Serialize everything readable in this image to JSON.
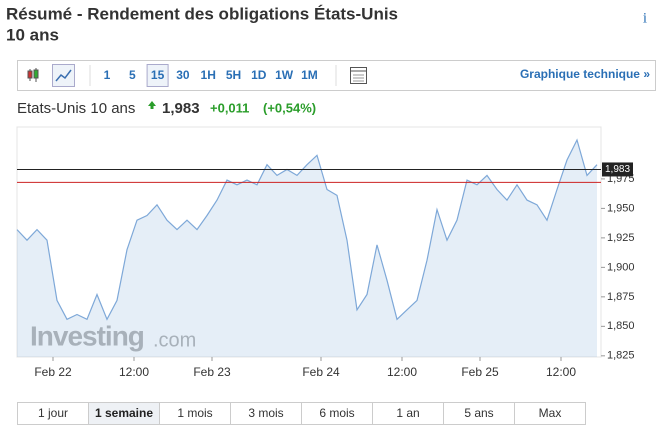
{
  "header": {
    "title_line1": "Résumé - Rendement des obligations États-Unis",
    "title_line2": "10 ans",
    "info": "i"
  },
  "toolbar": {
    "intervals": [
      "1",
      "5",
      "15",
      "30",
      "1H",
      "5H",
      "1D",
      "1W",
      "1M"
    ],
    "active": "15",
    "link": "Graphique technique »"
  },
  "quote": {
    "name": "Etats-Unis 10 ans",
    "price": "1,983",
    "change": "+0,011",
    "change_pct": "(+0,54%)"
  },
  "chart_data": {
    "type": "line",
    "series": [
      {
        "color": "#7ea8d8",
        "x": [
          0,
          1,
          2,
          3,
          4,
          5,
          6,
          7,
          8,
          9,
          10,
          11,
          12,
          13,
          14,
          15,
          16,
          17,
          18,
          19,
          20,
          21,
          22,
          23,
          24,
          25,
          26,
          27,
          28,
          29,
          30,
          31,
          32,
          33,
          34,
          35,
          36,
          37,
          38,
          39,
          40,
          41,
          42,
          43,
          44,
          45,
          46,
          47,
          48,
          49,
          50,
          51,
          52,
          53,
          54,
          55,
          56,
          57,
          58
        ],
        "values": [
          1.932,
          1.923,
          1.932,
          1.923,
          1.872,
          1.856,
          1.86,
          1.856,
          1.877,
          1.856,
          1.872,
          1.915,
          1.94,
          1.944,
          1.953,
          1.94,
          1.932,
          1.94,
          1.932,
          1.944,
          1.957,
          1.974,
          1.97,
          1.974,
          1.97,
          1.987,
          1.978,
          1.983,
          1.978,
          1.987,
          1.995,
          1.966,
          1.961,
          1.923,
          1.864,
          1.877,
          1.919,
          1.889,
          1.856,
          1.864,
          1.872,
          1.906,
          1.949,
          1.923,
          1.94,
          1.974,
          1.97,
          1.978,
          1.966,
          1.957,
          1.97,
          1.957,
          1.953,
          1.94,
          1.966,
          1.991,
          2.008,
          1.978,
          1.987
        ]
      }
    ],
    "xlim": [
      0,
      58.4
    ],
    "xticks": [
      {
        "value": 3.6,
        "label": "Feb 22"
      },
      {
        "value": 11.7,
        "label": "12:00"
      },
      {
        "value": 19.5,
        "label": "Feb 23"
      },
      {
        "value": 30.4,
        "label": "Feb 24"
      },
      {
        "value": 38.5,
        "label": "12:00"
      },
      {
        "value": 46.3,
        "label": "Feb 25"
      },
      {
        "value": 54.4,
        "label": "12:00"
      }
    ],
    "ylim": [
      1.824,
      2.019
    ],
    "yticks": [
      {
        "value": 1.825,
        "label": "1,825"
      },
      {
        "value": 1.85,
        "label": "1,850"
      },
      {
        "value": 1.875,
        "label": "1,875"
      },
      {
        "value": 1.9,
        "label": "1,900"
      },
      {
        "value": 1.925,
        "label": "1,925"
      },
      {
        "value": 1.95,
        "label": "1,950"
      },
      {
        "value": 1.975,
        "label": "1,975"
      }
    ],
    "reference_lines": [
      {
        "value": 1.972,
        "color": "#cc2222"
      },
      {
        "value": 1.983,
        "color": "#222222",
        "label": "1,983"
      }
    ],
    "watermark": [
      "Investing",
      ".com"
    ]
  },
  "ranges": {
    "items": [
      "1 jour",
      "1 semaine",
      "1 mois",
      "3 mois",
      "6 mois",
      "1 an",
      "5 ans",
      "Max"
    ],
    "active": "1 semaine"
  }
}
